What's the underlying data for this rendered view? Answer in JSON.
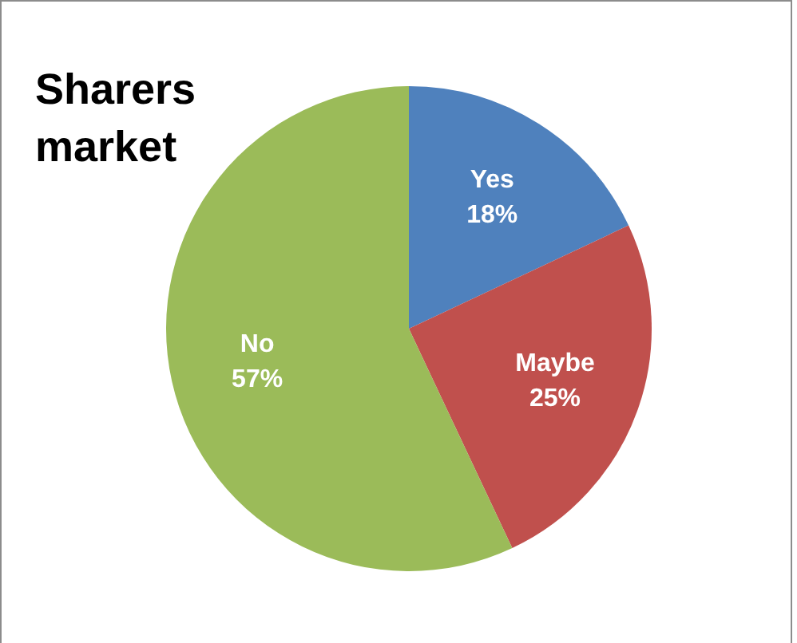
{
  "chart_data": {
    "type": "pie",
    "title": "Sharers market",
    "categories": [
      "Yes",
      "Maybe",
      "No"
    ],
    "values": [
      18,
      25,
      57
    ],
    "value_labels": [
      "18%",
      "25%",
      "57%"
    ],
    "colors": [
      "#4f81bd",
      "#c0504d",
      "#9bbb59"
    ],
    "legend": false
  }
}
